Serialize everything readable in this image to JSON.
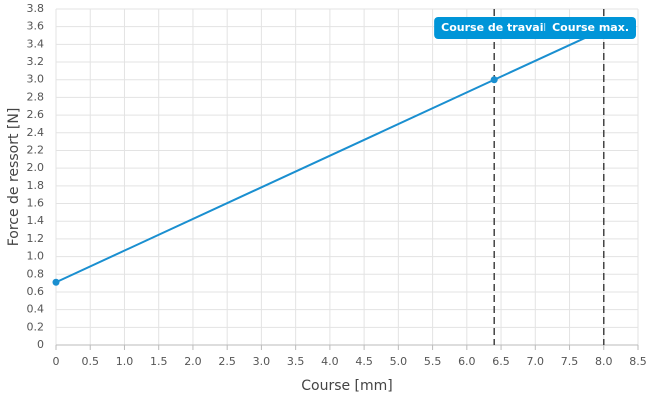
{
  "chart_data": {
    "type": "line",
    "x_label": "Course [mm]",
    "y_label": "Force de ressort [N]",
    "x": [
      0,
      6.4,
      8
    ],
    "values": [
      0.71,
      3.0,
      3.57
    ],
    "color": "#1a8fd0",
    "markers": [
      0,
      1
    ],
    "xlim": [
      0,
      8.5
    ],
    "ylim": [
      0,
      3.8
    ],
    "xticks": [
      0,
      0.5,
      {
        "value": 1,
        "label": "1.0"
      },
      1.5,
      {
        "value": 2,
        "label": "2.0"
      },
      2.5,
      {
        "value": 3,
        "label": "3.0"
      },
      3.5,
      {
        "value": 4,
        "label": "4.0"
      },
      4.5,
      {
        "value": 5,
        "label": "5.0"
      },
      5.5,
      {
        "value": 6,
        "label": "6.0"
      },
      6.5,
      {
        "value": 7,
        "label": "7.0"
      },
      7.5,
      {
        "value": 8,
        "label": "8.0"
      },
      8.5
    ],
    "yticks": [
      0,
      0.2,
      0.4,
      0.6,
      0.8,
      {
        "value": 1,
        "label": "1.0"
      },
      1.2,
      1.4,
      1.6,
      1.8,
      {
        "value": 2,
        "label": "2.0"
      },
      2.2,
      2.4,
      2.6,
      2.8,
      {
        "value": 3,
        "label": "3.0"
      },
      3.2,
      3.4,
      3.6,
      3.8
    ],
    "grid": true,
    "annotations": [
      {
        "x": 6.4,
        "label": "Course de travail"
      },
      {
        "x": 8,
        "label": "Course max."
      }
    ],
    "annotation_color": "#0095d8"
  }
}
